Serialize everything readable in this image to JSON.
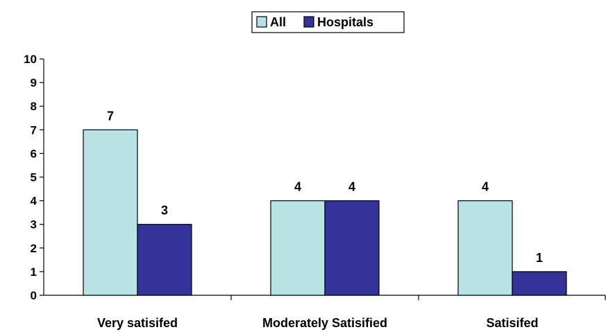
{
  "chart_data": {
    "type": "bar",
    "categories": [
      "Very satisifed",
      "Moderately Satisified",
      "Satisifed"
    ],
    "series": [
      {
        "name": "All",
        "values": [
          7,
          4,
          4
        ],
        "color": "#b9e2e4"
      },
      {
        "name": "Hospitals",
        "values": [
          3,
          4,
          1
        ],
        "color": "#333399"
      }
    ],
    "ylim": [
      0,
      10
    ],
    "yticks": [
      0,
      1,
      2,
      3,
      4,
      5,
      6,
      7,
      8,
      9,
      10
    ],
    "title": "",
    "xlabel": "",
    "ylabel": "",
    "legend_position": "top-center",
    "grid": false,
    "data_labels": true
  }
}
